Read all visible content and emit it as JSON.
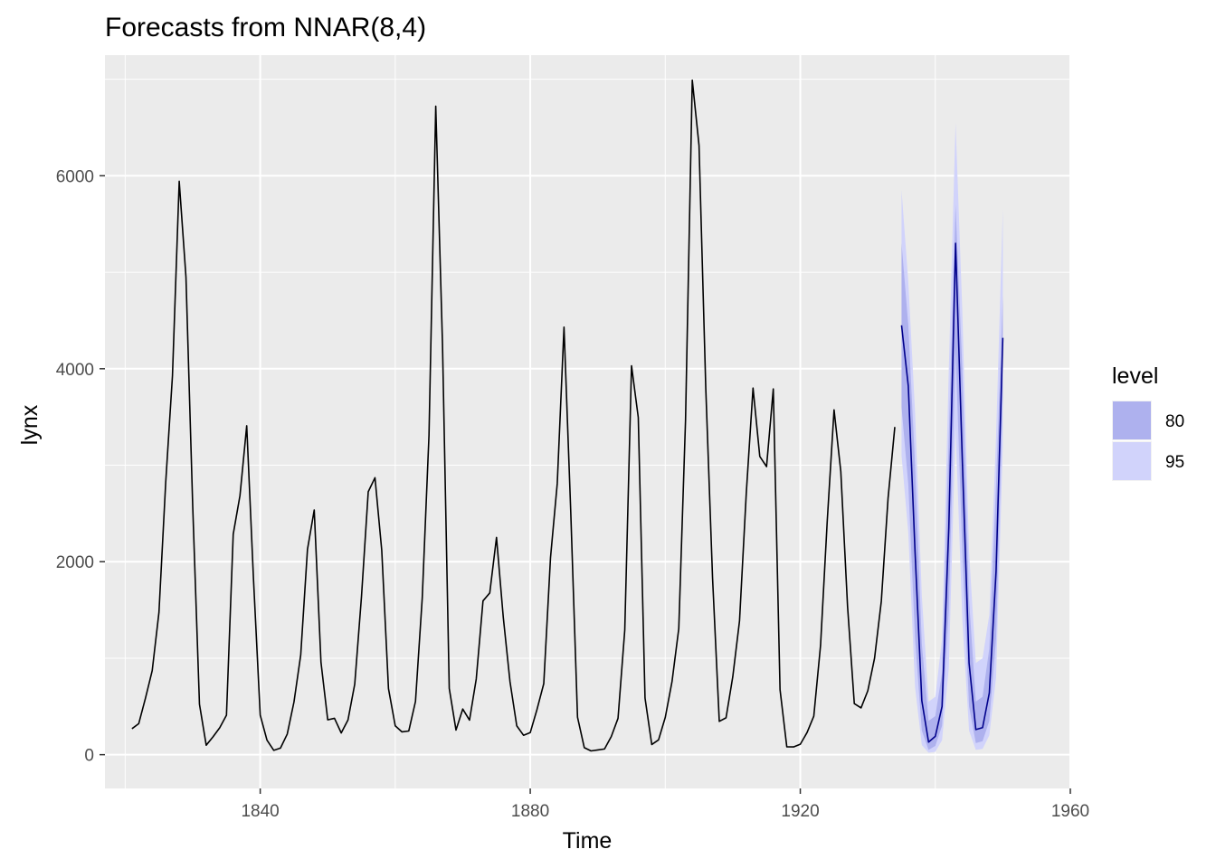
{
  "chart_data": {
    "type": "line",
    "title": "Forecasts from NNAR(8,4)",
    "xlabel": "Time",
    "ylabel": "lynx",
    "xlim": [
      1817,
      1960
    ],
    "ylim": [
      -350,
      7250
    ],
    "x_ticks": [
      1840,
      1880,
      1920,
      1960
    ],
    "y_ticks": [
      0,
      2000,
      4000,
      6000
    ],
    "x_tick_labels": [
      "1840",
      "1880",
      "1920",
      "1960"
    ],
    "y_tick_labels": [
      "0",
      "2000",
      "4000",
      "6000"
    ],
    "grid": true,
    "legend_placement": "right",
    "legend": {
      "title": "level",
      "entries": [
        {
          "label": "80",
          "color": "#aeb1ee"
        },
        {
          "label": "95",
          "color": "#d1d3fb"
        }
      ]
    },
    "colors": {
      "panel_background": "#ebebeb",
      "grid": "#ffffff",
      "history_line": "#000000",
      "forecast_line": "#00008b",
      "band_80": "#aeb1ee",
      "band_95": "#d1d3fb"
    },
    "history": {
      "start_year": 1821,
      "values": [
        269,
        321,
        585,
        871,
        1475,
        2821,
        3928,
        5943,
        4950,
        2577,
        523,
        98,
        184,
        279,
        409,
        2285,
        2685,
        3409,
        1824,
        409,
        151,
        45,
        68,
        213,
        546,
        1033,
        2129,
        2536,
        957,
        361,
        377,
        225,
        360,
        731,
        1638,
        2725,
        2871,
        2119,
        684,
        299,
        236,
        245,
        552,
        1623,
        3311,
        6721,
        4254,
        687,
        255,
        473,
        358,
        784,
        1594,
        1676,
        2251,
        1426,
        756,
        299,
        201,
        229,
        469,
        736,
        2042,
        2811,
        4431,
        2511,
        389,
        73,
        39,
        49,
        59,
        188,
        377,
        1292,
        4031,
        3495,
        587,
        105,
        153,
        387,
        758,
        1307,
        3465,
        6991,
        6313,
        3794,
        1836,
        345,
        382,
        808,
        1388,
        2713,
        3800,
        3091,
        2985,
        3790,
        674,
        81,
        80,
        108,
        229,
        399,
        1132,
        2432,
        3574,
        2935,
        1537,
        529,
        485,
        662,
        1000,
        1590,
        2657,
        3396
      ]
    },
    "forecast": {
      "start_year": 1935,
      "mean": [
        4450,
        3820,
        2100,
        560,
        130,
        190,
        500,
        2350,
        5300,
        3050,
        950,
        260,
        280,
        640,
        1900,
        4320
      ],
      "lo80": [
        3600,
        2800,
        1200,
        250,
        50,
        90,
        300,
        1500,
        4200,
        2100,
        500,
        120,
        140,
        350,
        1200,
        3700
      ],
      "hi80": [
        5300,
        4450,
        3000,
        1150,
        350,
        400,
        850,
        3300,
        5700,
        4000,
        1600,
        550,
        600,
        1100,
        2800,
        4750
      ],
      "lo95": [
        3100,
        2300,
        700,
        100,
        20,
        30,
        150,
        900,
        3400,
        1400,
        250,
        50,
        60,
        200,
        800,
        3200
      ],
      "hi95": [
        5850,
        4900,
        3550,
        1650,
        550,
        600,
        1200,
        4000,
        6550,
        4600,
        2100,
        950,
        1000,
        1450,
        3300,
        5650
      ]
    }
  }
}
